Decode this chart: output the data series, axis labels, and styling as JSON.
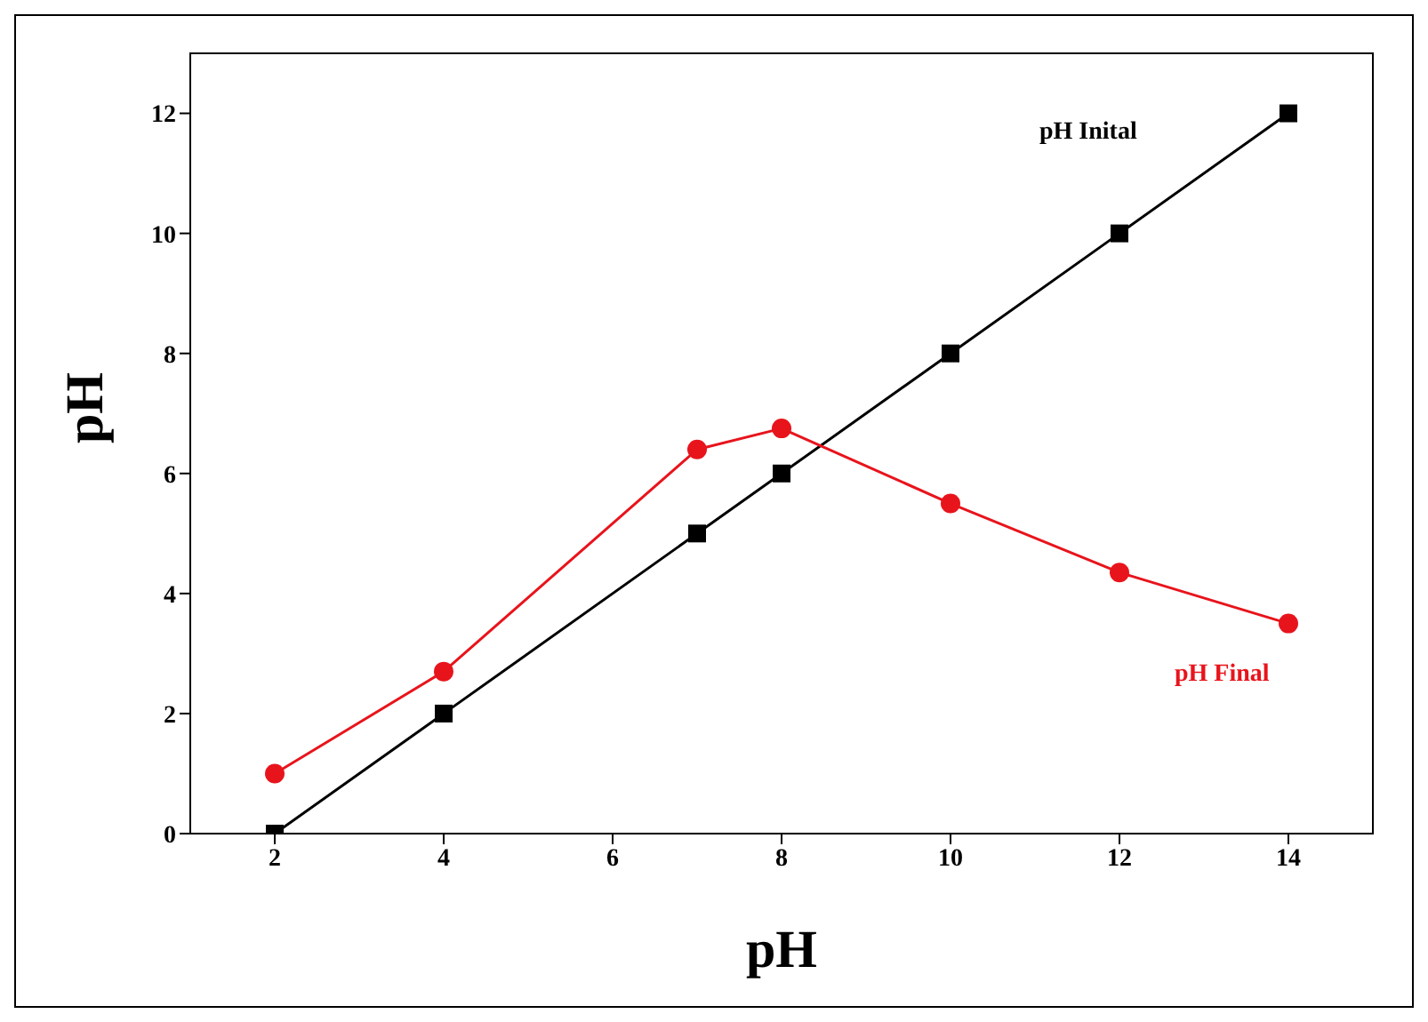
{
  "chart_data": {
    "type": "line",
    "xlabel": "pH",
    "ylabel": "pH",
    "xlim": [
      1,
      15
    ],
    "xticks": [
      2,
      4,
      6,
      8,
      10,
      12,
      14
    ],
    "ylim": [
      0,
      13
    ],
    "yticks": [
      0,
      2,
      4,
      6,
      8,
      10,
      12
    ],
    "series": [
      {
        "name": "pH Inital",
        "color": "#000000",
        "marker": "square",
        "x": [
          2,
          4,
          7,
          8,
          10,
          12,
          14
        ],
        "values": [
          0,
          2,
          5,
          6,
          8,
          10,
          12
        ]
      },
      {
        "name": "pH Final",
        "color": "#e8141c",
        "marker": "circle",
        "x": [
          2,
          4,
          7,
          8,
          10,
          12,
          14
        ],
        "values": [
          1,
          2.7,
          6.4,
          6.75,
          5.5,
          4.35,
          3.5
        ]
      }
    ]
  }
}
